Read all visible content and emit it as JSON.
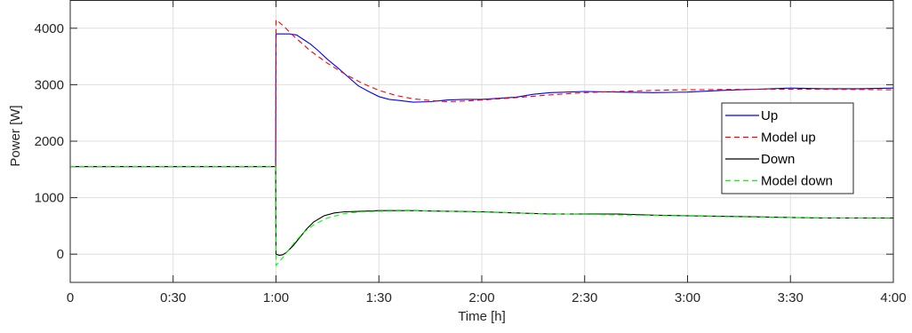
{
  "chart_data": {
    "type": "line",
    "title": "",
    "xlabel": "Time [h]",
    "ylabel": "Power [W]",
    "xlim": [
      0,
      240
    ],
    "ylim": [
      -500,
      4500
    ],
    "x_ticks": [
      0,
      30,
      60,
      90,
      120,
      150,
      180,
      210,
      240
    ],
    "x_tick_labels": [
      "0",
      "0:30",
      "1:00",
      "1:30",
      "2:00",
      "2:30",
      "3:00",
      "3:30",
      "4:00"
    ],
    "y_ticks": [
      0,
      1000,
      2000,
      3000,
      4000
    ],
    "y_tick_labels": [
      "0",
      "1000",
      "2000",
      "3000",
      "4000"
    ],
    "grid": true,
    "legend_position": "right",
    "series": [
      {
        "name": "Up",
        "color": "#0000ff",
        "dash": "solid",
        "points": [
          [
            0,
            1550
          ],
          [
            59.9,
            1550
          ],
          [
            60,
            3900
          ],
          [
            64,
            3900
          ],
          [
            66,
            3880
          ],
          [
            68,
            3800
          ],
          [
            70,
            3720
          ],
          [
            72,
            3620
          ],
          [
            75,
            3450
          ],
          [
            78,
            3300
          ],
          [
            81,
            3140
          ],
          [
            84,
            2980
          ],
          [
            87,
            2880
          ],
          [
            90,
            2790
          ],
          [
            93,
            2740
          ],
          [
            96,
            2720
          ],
          [
            100,
            2690
          ],
          [
            105,
            2700
          ],
          [
            110,
            2730
          ],
          [
            115,
            2740
          ],
          [
            120,
            2740
          ],
          [
            125,
            2760
          ],
          [
            130,
            2780
          ],
          [
            135,
            2830
          ],
          [
            140,
            2860
          ],
          [
            145,
            2870
          ],
          [
            150,
            2880
          ],
          [
            160,
            2870
          ],
          [
            170,
            2860
          ],
          [
            180,
            2870
          ],
          [
            190,
            2900
          ],
          [
            200,
            2920
          ],
          [
            210,
            2940
          ],
          [
            220,
            2930
          ],
          [
            230,
            2930
          ],
          [
            240,
            2940
          ]
        ]
      },
      {
        "name": "Model up",
        "color": "#ff0000",
        "dash": "dashed",
        "points": [
          [
            0,
            1550
          ],
          [
            59.9,
            1550
          ],
          [
            60,
            4150
          ],
          [
            62,
            4050
          ],
          [
            65,
            3870
          ],
          [
            70,
            3600
          ],
          [
            75,
            3380
          ],
          [
            80,
            3190
          ],
          [
            85,
            3030
          ],
          [
            90,
            2900
          ],
          [
            95,
            2810
          ],
          [
            100,
            2750
          ],
          [
            105,
            2720
          ],
          [
            110,
            2700
          ],
          [
            115,
            2710
          ],
          [
            120,
            2730
          ],
          [
            130,
            2770
          ],
          [
            140,
            2820
          ],
          [
            150,
            2860
          ],
          [
            160,
            2880
          ],
          [
            170,
            2900
          ],
          [
            180,
            2910
          ],
          [
            200,
            2920
          ],
          [
            220,
            2920
          ],
          [
            240,
            2910
          ]
        ]
      },
      {
        "name": "Down",
        "color": "#000000",
        "dash": "solid",
        "points": [
          [
            0,
            1550
          ],
          [
            59.9,
            1550
          ],
          [
            60,
            0
          ],
          [
            61,
            -20
          ],
          [
            62,
            -10
          ],
          [
            63,
            30
          ],
          [
            65,
            150
          ],
          [
            67,
            300
          ],
          [
            69,
            450
          ],
          [
            71,
            570
          ],
          [
            74,
            680
          ],
          [
            77,
            730
          ],
          [
            80,
            750
          ],
          [
            85,
            760
          ],
          [
            90,
            770
          ],
          [
            100,
            770
          ],
          [
            110,
            760
          ],
          [
            120,
            750
          ],
          [
            130,
            730
          ],
          [
            140,
            710
          ],
          [
            150,
            710
          ],
          [
            160,
            710
          ],
          [
            170,
            690
          ],
          [
            180,
            680
          ],
          [
            190,
            670
          ],
          [
            200,
            660
          ],
          [
            210,
            650
          ],
          [
            220,
            640
          ],
          [
            230,
            640
          ],
          [
            240,
            640
          ]
        ]
      },
      {
        "name": "Model down",
        "color": "#00ff00",
        "dash": "dashed",
        "points": [
          [
            0,
            1550
          ],
          [
            59.9,
            1550
          ],
          [
            60,
            -200
          ],
          [
            62,
            -60
          ],
          [
            64,
            100
          ],
          [
            66,
            250
          ],
          [
            68,
            380
          ],
          [
            71,
            520
          ],
          [
            75,
            640
          ],
          [
            80,
            720
          ],
          [
            85,
            750
          ],
          [
            90,
            760
          ],
          [
            100,
            765
          ],
          [
            110,
            760
          ],
          [
            120,
            745
          ],
          [
            130,
            730
          ],
          [
            140,
            715
          ],
          [
            150,
            705
          ],
          [
            160,
            695
          ],
          [
            170,
            685
          ],
          [
            180,
            675
          ],
          [
            190,
            665
          ],
          [
            200,
            655
          ],
          [
            210,
            648
          ],
          [
            220,
            642
          ],
          [
            230,
            638
          ],
          [
            240,
            635
          ]
        ]
      }
    ]
  }
}
